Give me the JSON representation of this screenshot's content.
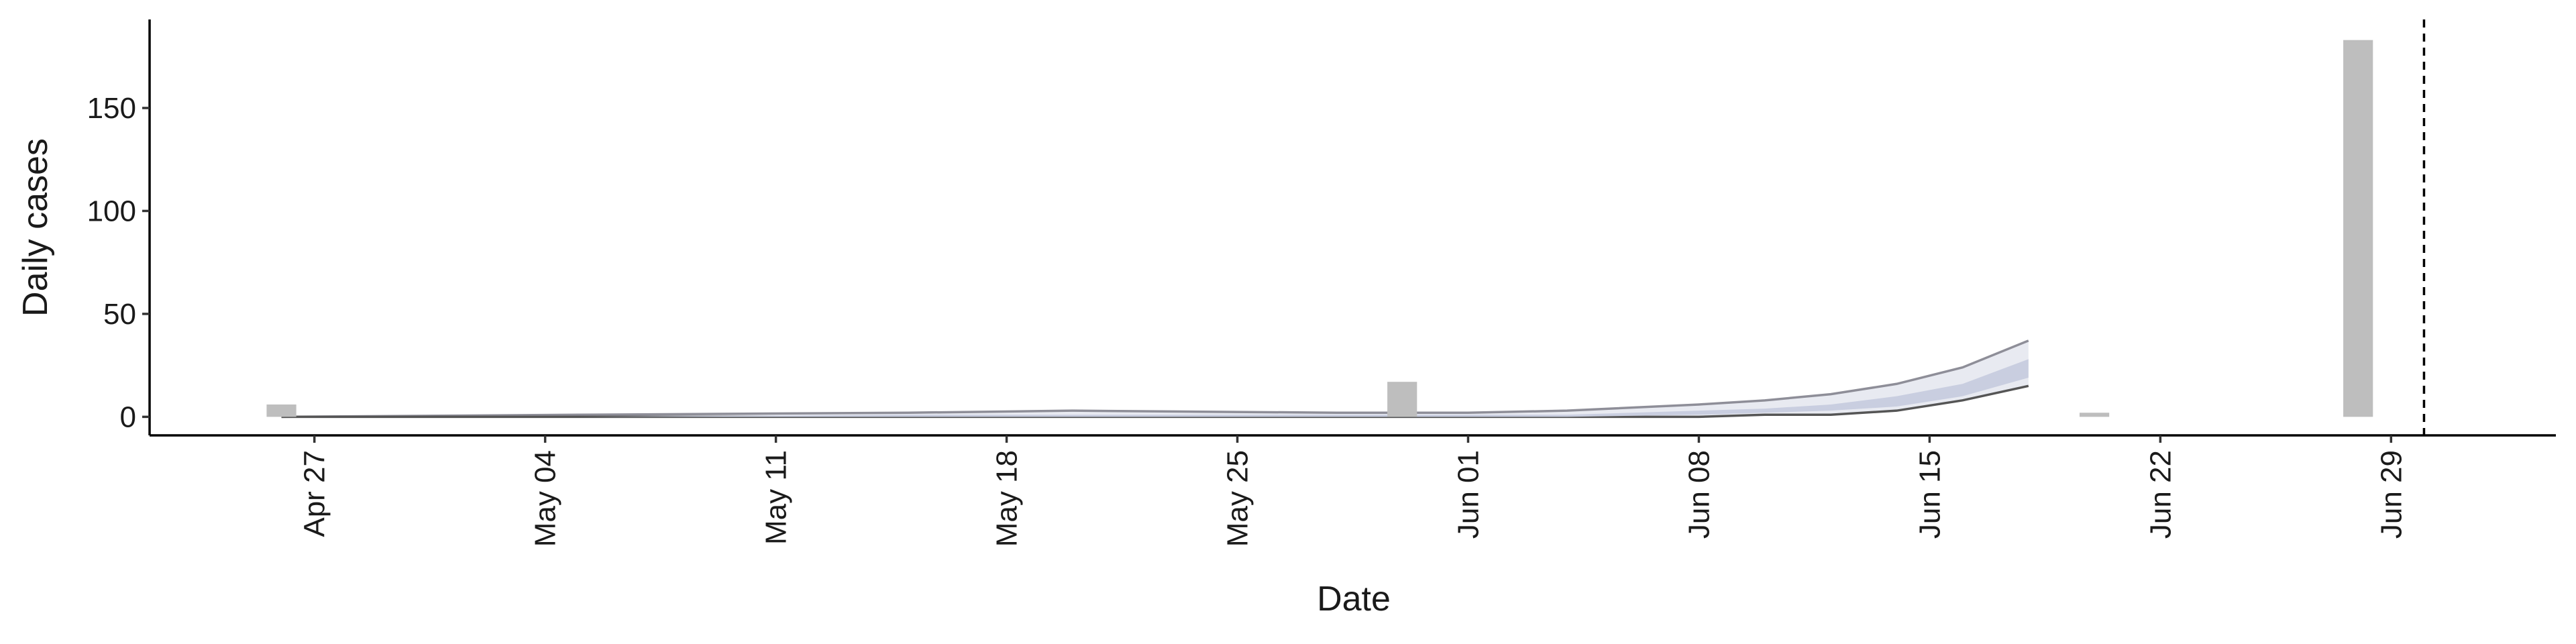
{
  "chart_data": {
    "type": "bar",
    "xlabel": "Date",
    "ylabel": "Daily cases",
    "categories": [
      "Apr 26",
      "May 30",
      "Jun 20",
      "Jun 28"
    ],
    "values": [
      6,
      17,
      2,
      183
    ],
    "color": "#bebebe",
    "x": [
      "Apr 26",
      "May 05",
      "May 15",
      "May 20",
      "May 28",
      "Jun 01",
      "Jun 04",
      "Jun 08",
      "Jun 10",
      "Jun 12",
      "Jun 14",
      "Jun 16",
      "Jun 18"
    ],
    "bands": [
      {
        "upper": [
          0,
          1,
          2,
          3,
          2,
          2,
          3,
          6,
          8,
          11,
          16,
          24,
          37
        ],
        "lower": [
          0,
          0,
          0,
          0,
          0,
          0,
          0,
          0,
          1,
          1,
          3,
          8,
          15
        ],
        "color": "#e8eaf1",
        "line_color": "#8e8e98"
      },
      {
        "upper": [
          0,
          0,
          1,
          1,
          1,
          1,
          1,
          3,
          4,
          6,
          10,
          16,
          28
        ],
        "lower": [
          0,
          0,
          0,
          0,
          0,
          0,
          0,
          1,
          2,
          3,
          5,
          10,
          19
        ],
        "color": "#c9cee0"
      }
    ],
    "vline": "Jun 30",
    "xlim": [
      "Apr 22",
      "Jul 04"
    ],
    "xticks": [
      "Apr 27",
      "May 04",
      "May 11",
      "May 18",
      "May 25",
      "Jun 01",
      "Jun 08",
      "Jun 15",
      "Jun 22",
      "Jun 29"
    ],
    "ylim": [
      -9,
      193
    ],
    "yticks": [
      0,
      50,
      100,
      150
    ]
  }
}
